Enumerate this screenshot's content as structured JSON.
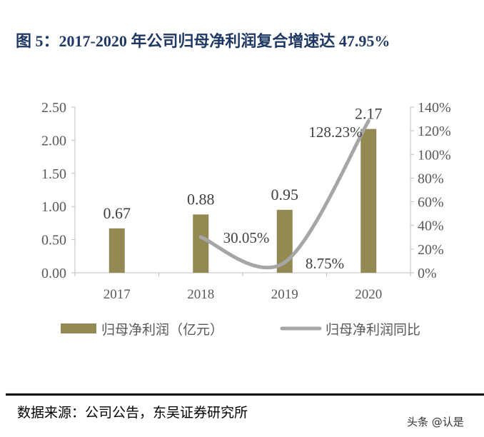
{
  "title": "图 5：2017-2020 年公司归母净利润复合增速达 47.95%",
  "source": "数据来源：公司公告，东吴证券研究所",
  "watermark": "头条 @认是",
  "colors": {
    "bar": "#938953",
    "line": "#a6a6a6",
    "title": "#1f3864"
  },
  "chart_data": {
    "type": "bar+line",
    "categories": [
      "2017",
      "2018",
      "2019",
      "2020"
    ],
    "series": [
      {
        "name": "归母净利润（亿元）",
        "type": "bar",
        "axis": "left",
        "values": [
          0.67,
          0.88,
          0.95,
          2.17
        ],
        "labels": [
          "0.67",
          "0.88",
          "0.95",
          "2.17"
        ]
      },
      {
        "name": "归母净利润同比",
        "type": "line",
        "axis": "right",
        "values": [
          null,
          30.05,
          8.75,
          128.23
        ],
        "labels": [
          "",
          "30.05%",
          "8.75%",
          "128.23%"
        ]
      }
    ],
    "left_axis": {
      "range": [
        0,
        2.5
      ],
      "ticks": [
        "0.00",
        "0.50",
        "1.00",
        "1.50",
        "2.00",
        "2.50"
      ]
    },
    "right_axis": {
      "range": [
        0,
        140
      ],
      "ticks": [
        "0%",
        "20%",
        "40%",
        "60%",
        "80%",
        "100%",
        "120%",
        "140%"
      ]
    },
    "legend_position": "bottom"
  }
}
